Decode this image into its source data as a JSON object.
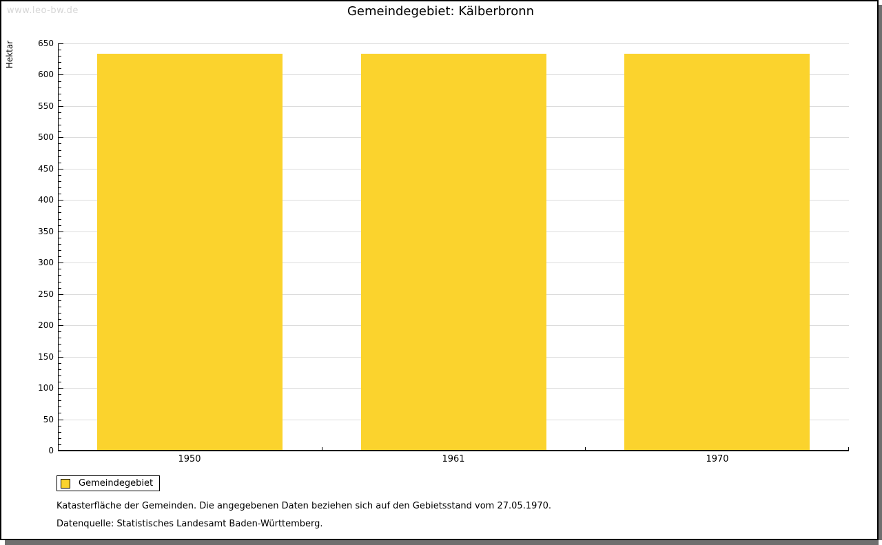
{
  "watermark": "www.leo-bw.de",
  "title": "Gemeindegebiet: Kälberbronn",
  "chart_data": {
    "type": "bar",
    "title": "Gemeindegebiet: Kälberbronn",
    "categories": [
      "1950",
      "1961",
      "1970"
    ],
    "series": [
      {
        "name": "Gemeindegebiet",
        "values": [
          633,
          633,
          633
        ]
      }
    ],
    "xlabel": "",
    "ylabel": "Hektar",
    "ylim": [
      0,
      650
    ],
    "ytick_step": 50,
    "yminor_step": 10,
    "grid": "horizontal-major",
    "legend_position": "bottom-left",
    "bar_color": "#fbd32d"
  },
  "legend": {
    "items": [
      {
        "label": "Gemeindegebiet",
        "color": "#fbd32d"
      }
    ]
  },
  "footnotes": [
    "Katasterfläche der Gemeinden. Die angegebenen Daten beziehen sich auf den Gebietsstand vom 27.05.1970.",
    "Datenquelle: Statistisches Landesamt Baden-Württemberg."
  ],
  "colors": {
    "bar": "#fbd32d",
    "gridline": "#dcdcdc",
    "axis": "#000000",
    "watermark_text": "#d6d6d6",
    "frame_shadow": "#6f6f6f",
    "background": "#ffffff"
  }
}
